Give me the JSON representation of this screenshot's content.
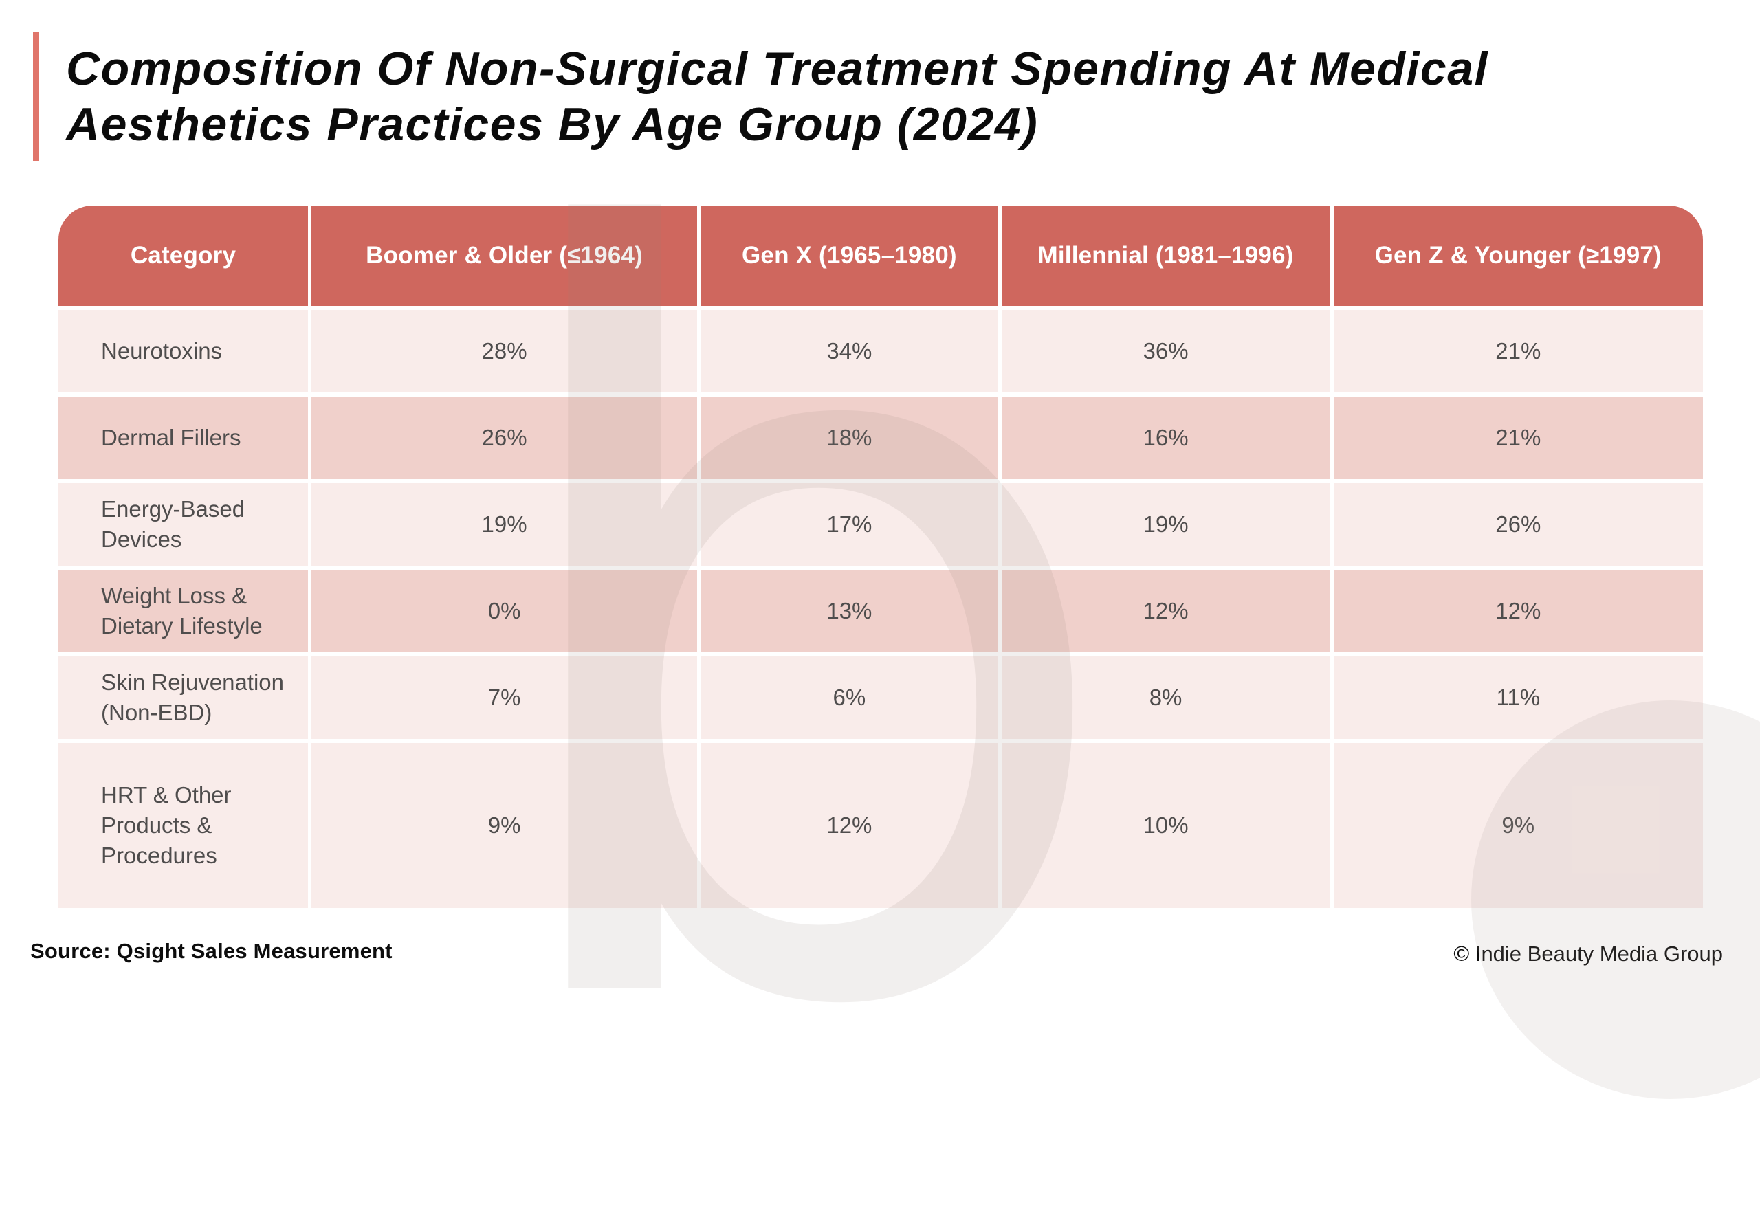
{
  "title": {
    "line1": "Composition Of Non-Surgical Treatment Spending At Medical",
    "line2": "Aesthetics Practices By Age Group (2024)"
  },
  "chart_data": {
    "type": "table",
    "title": "Composition Of Non-Surgical Treatment Spending At Medical Aesthetics Practices By Age Group (2024)",
    "columns": [
      "Category",
      "Boomer & Older (≤1964)",
      "Gen X (1965–1980)",
      "Millennial (1981–1996)",
      "Gen Z & Younger (≥1997)"
    ],
    "rows": [
      {
        "category": "Neurotoxins",
        "values": [
          "28%",
          "34%",
          "36%",
          "21%"
        ],
        "shade": "light"
      },
      {
        "category": "Dermal Fillers",
        "values": [
          "26%",
          "18%",
          "16%",
          "21%"
        ],
        "shade": "dark"
      },
      {
        "category": "Energy-Based Devices",
        "values": [
          "19%",
          "17%",
          "19%",
          "26%"
        ],
        "shade": "light"
      },
      {
        "category": "Weight Loss & Dietary Lifestyle",
        "values": [
          "0%",
          "13%",
          "12%",
          "12%"
        ],
        "shade": "dark"
      },
      {
        "category": "Skin Rejuvenation (Non-EBD)",
        "values": [
          "7%",
          "6%",
          "8%",
          "11%"
        ],
        "shade": "light"
      },
      {
        "category": "HRT & Other Products & Procedures",
        "values": [
          "9%",
          "12%",
          "10%",
          "9%"
        ],
        "shade": "light"
      }
    ]
  },
  "footer": {
    "source": "Source: Qsight Sales Measurement",
    "copyright": "© Indie Beauty Media Group"
  },
  "watermark": {
    "glyph": "b"
  },
  "colors": {
    "header_bg": "#cf675e",
    "row_light": "#f9ecea",
    "row_dark": "#f0d0cb",
    "accent_bar": "#e0756a",
    "body_text": "#4f4d4d"
  }
}
